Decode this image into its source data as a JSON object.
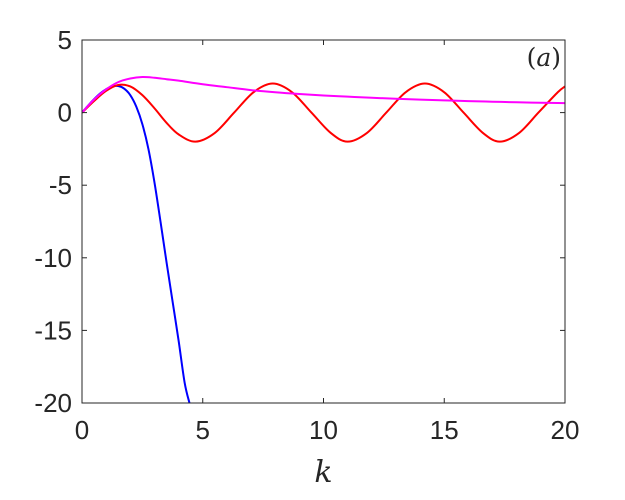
{
  "chart_data": {
    "type": "line",
    "title": "",
    "xlabel": "k",
    "ylabel": "",
    "xlim": [
      0,
      20
    ],
    "ylim": [
      -20,
      5
    ],
    "xticks": [
      0,
      5,
      10,
      15,
      20
    ],
    "yticks": [
      5,
      0,
      -5,
      -10,
      -15,
      -20
    ],
    "grid": false,
    "legend": "none",
    "panel_label": {
      "open": "(",
      "letter": "a",
      "close": ")"
    },
    "series": [
      {
        "color": "#0000ff",
        "x": [
          0,
          0.25,
          0.5,
          0.75,
          1.0,
          1.25,
          1.5,
          1.75,
          2.0,
          2.25,
          2.5,
          2.75,
          3.0,
          3.25,
          3.5,
          3.75,
          4.0,
          4.25,
          4.45
        ],
        "y": [
          0,
          0.48,
          0.92,
          1.31,
          1.61,
          1.8,
          1.83,
          1.65,
          1.2,
          0.4,
          -0.8,
          -2.5,
          -4.8,
          -7.5,
          -10.3,
          -13.0,
          -15.7,
          -18.6,
          -20.0
        ]
      },
      {
        "color": "#ff0000",
        "x": [
          0,
          0.5,
          1.0,
          1.5,
          2.0,
          2.5,
          3.0,
          3.5,
          4.0,
          4.7,
          5.5,
          6.3,
          7.1,
          7.9,
          8.7,
          9.5,
          10.3,
          11.0,
          11.8,
          12.6,
          13.4,
          14.2,
          15.0,
          15.8,
          16.6,
          17.3,
          18.1,
          18.9,
          19.7,
          20.0
        ],
        "y": [
          0,
          0.8,
          1.5,
          1.9,
          1.8,
          1.2,
          0.3,
          -0.7,
          -1.5,
          -2.0,
          -1.4,
          0.0,
          1.4,
          2.0,
          1.4,
          0.0,
          -1.4,
          -2.0,
          -1.4,
          0.0,
          1.4,
          2.0,
          1.4,
          0.0,
          -1.4,
          -2.0,
          -1.4,
          0.0,
          1.4,
          1.8
        ]
      },
      {
        "color": "#ff00ff",
        "x": [
          0,
          0.5,
          1.0,
          1.5,
          2.0,
          2.5,
          3.0,
          3.5,
          4.0,
          5.0,
          6.0,
          7.0,
          8.0,
          9.0,
          10.0,
          11.0,
          12.0,
          13.0,
          14.0,
          15.0,
          16.0,
          17.0,
          18.0,
          19.0,
          20.0
        ],
        "y": [
          0,
          0.9,
          1.6,
          2.1,
          2.35,
          2.45,
          2.4,
          2.3,
          2.2,
          1.95,
          1.75,
          1.55,
          1.4,
          1.28,
          1.18,
          1.1,
          1.02,
          0.95,
          0.89,
          0.84,
          0.79,
          0.75,
          0.71,
          0.68,
          0.65
        ]
      }
    ]
  }
}
